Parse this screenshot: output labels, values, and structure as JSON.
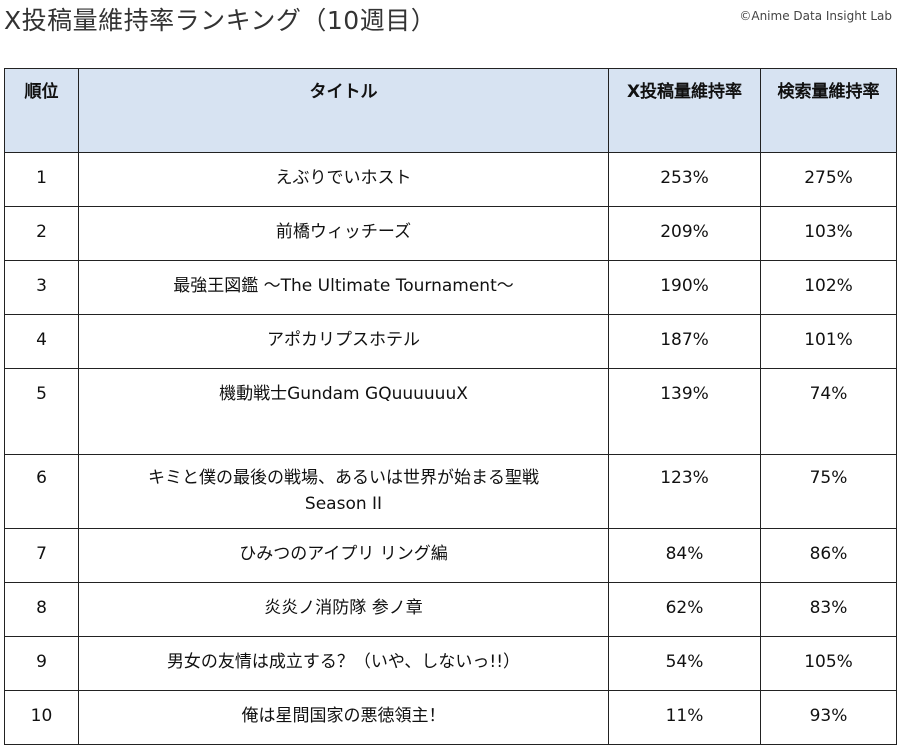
{
  "header": {
    "title": "X投稿量維持率ランキング（10週目）",
    "credit": "©Anime Data Insight Lab"
  },
  "table": {
    "columns": [
      "順位",
      "タイトル",
      "X投稿量維持率",
      "検索量維持率"
    ],
    "rows": [
      {
        "rank": "1",
        "title": "えぶりでいホスト",
        "x_rate": "253%",
        "search_rate": "275%"
      },
      {
        "rank": "2",
        "title": "前橋ウィッチーズ",
        "x_rate": "209%",
        "search_rate": "103%"
      },
      {
        "rank": "3",
        "title": "最強王図鑑 〜The Ultimate Tournament〜",
        "x_rate": "190%",
        "search_rate": "102%"
      },
      {
        "rank": "4",
        "title": "アポカリプスホテル",
        "x_rate": "187%",
        "search_rate": "101%"
      },
      {
        "rank": "5",
        "title": "機動戦士Gundam GQuuuuuuX",
        "x_rate": "139%",
        "search_rate": "74%"
      },
      {
        "rank": "6",
        "title": "キミと僕の最後の戦場、あるいは世界が始まる聖戦",
        "title_line2": "Season II",
        "x_rate": "123%",
        "search_rate": "75%"
      },
      {
        "rank": "7",
        "title": "ひみつのアイプリ リング編",
        "x_rate": "84%",
        "search_rate": "86%"
      },
      {
        "rank": "8",
        "title": "炎炎ノ消防隊 参ノ章",
        "x_rate": "62%",
        "search_rate": "83%"
      },
      {
        "rank": "9",
        "title": "男女の友情は成立する？（いや、しないっ!!）",
        "x_rate": "54%",
        "search_rate": "105%"
      },
      {
        "rank": "10",
        "title": "俺は星間国家の悪徳領主！",
        "x_rate": "11%",
        "search_rate": "93%"
      }
    ]
  },
  "colors": {
    "header_bg": "#d7e3f2",
    "border": "#222222"
  }
}
